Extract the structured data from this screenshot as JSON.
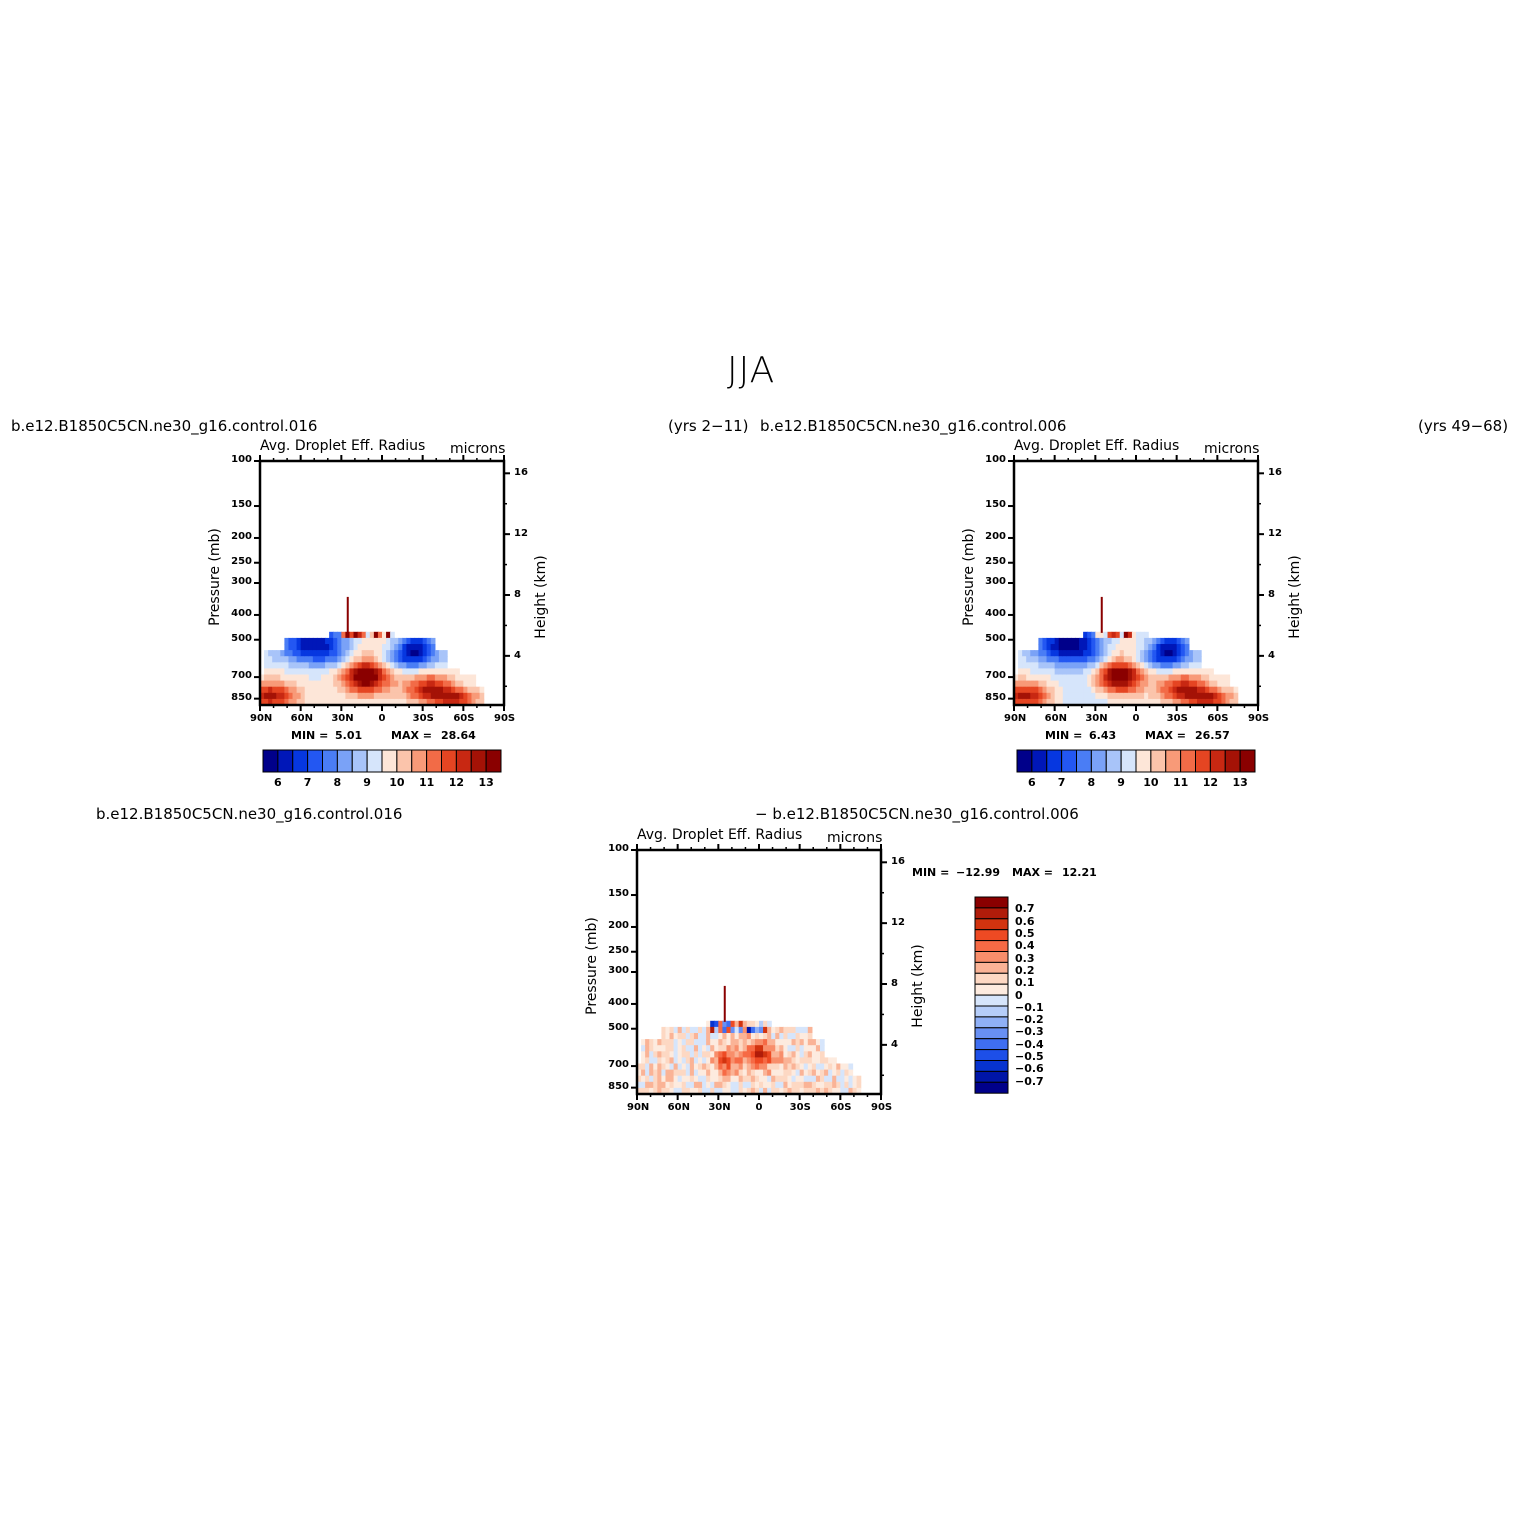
{
  "figure": {
    "title": "JJA",
    "case1_label": "b.e12.B1850C5CN.ne30_g16.control.016",
    "case1_years": "(yrs 2−11)",
    "case2_label": "b.e12.B1850C5CN.ne30_g16.control.006",
    "case2_years": "(yrs 49−68)",
    "diff_label_left": "b.e12.B1850C5CN.ne30_g16.control.016",
    "diff_label_right": "− b.e12.B1850C5CN.ne30_g16.control.006"
  },
  "chart_data": [
    {
      "type": "heatmap",
      "title": "Avg. Droplet Eff. Radius",
      "units": "microns",
      "ylabel": "Pressure (mb)",
      "ylabel_right": "Height (km)",
      "x_ticks": [
        "90N",
        "60N",
        "30N",
        "0",
        "30S",
        "60S",
        "90S"
      ],
      "y_ticks": [
        "100",
        "150",
        "200",
        "250",
        "300",
        "400",
        "500",
        "700",
        "850"
      ],
      "y_right_ticks": [
        "16",
        "12",
        "8",
        "4"
      ],
      "min_label": "MIN =",
      "min_value": "5.01",
      "max_label": "MAX =",
      "max_value": "28.64",
      "colorbar_labels": [
        "6",
        "7",
        "8",
        "9",
        "10",
        "11",
        "12",
        "13"
      ],
      "colormap": "blue-white-red",
      "colors": [
        "#00008a",
        "#0017b8",
        "#0637e0",
        "#2357f2",
        "#4a7df5",
        "#7aa2f7",
        "#a8c4f9",
        "#d6e5fb",
        "#fde6d8",
        "#fbc4ab",
        "#f89a78",
        "#f26b47",
        "#e54522",
        "#c82812",
        "#a41206",
        "#8a0000"
      ]
    },
    {
      "type": "heatmap",
      "title": "Avg. Droplet Eff. Radius",
      "units": "microns",
      "ylabel": "Pressure (mb)",
      "ylabel_right": "Height (km)",
      "x_ticks": [
        "90N",
        "60N",
        "30N",
        "0",
        "30S",
        "60S",
        "90S"
      ],
      "y_ticks": [
        "100",
        "150",
        "200",
        "250",
        "300",
        "400",
        "500",
        "700",
        "850"
      ],
      "y_right_ticks": [
        "16",
        "12",
        "8",
        "4"
      ],
      "min_label": "MIN =",
      "min_value": "6.43",
      "max_label": "MAX =",
      "max_value": "26.57",
      "colorbar_labels": [
        "6",
        "7",
        "8",
        "9",
        "10",
        "11",
        "12",
        "13"
      ]
    },
    {
      "type": "heatmap",
      "title": "Avg. Droplet Eff. Radius",
      "units": "microns",
      "ylabel": "Pressure (mb)",
      "ylabel_right": "Height (km)",
      "x_ticks": [
        "90N",
        "60N",
        "30N",
        "0",
        "30S",
        "60S",
        "90S"
      ],
      "y_ticks": [
        "100",
        "150",
        "200",
        "250",
        "300",
        "400",
        "500",
        "700",
        "850"
      ],
      "y_right_ticks": [
        "16",
        "12",
        "8",
        "4"
      ],
      "min_label": "MIN =",
      "min_value": "−12.99",
      "max_label": "MAX =",
      "max_value": "12.21",
      "colorbar_labels": [
        "0.7",
        "0.6",
        "0.5",
        "0.4",
        "0.3",
        "0.2",
        "0.1",
        "0",
        "−0.1",
        "−0.2",
        "−0.3",
        "−0.4",
        "−0.5",
        "−0.6",
        "−0.7"
      ],
      "colors": [
        "#8a0000",
        "#b01c0a",
        "#d2330f",
        "#ee4a23",
        "#f66a45",
        "#f88e6b",
        "#fab396",
        "#fdd8c3",
        "#fdebdf",
        "#d6e5fb",
        "#b5cdf9",
        "#8fb0f7",
        "#6890f4",
        "#3f6ef1",
        "#1d4fe8",
        "#0733cf",
        "#0015a8",
        "#00008a"
      ]
    }
  ]
}
